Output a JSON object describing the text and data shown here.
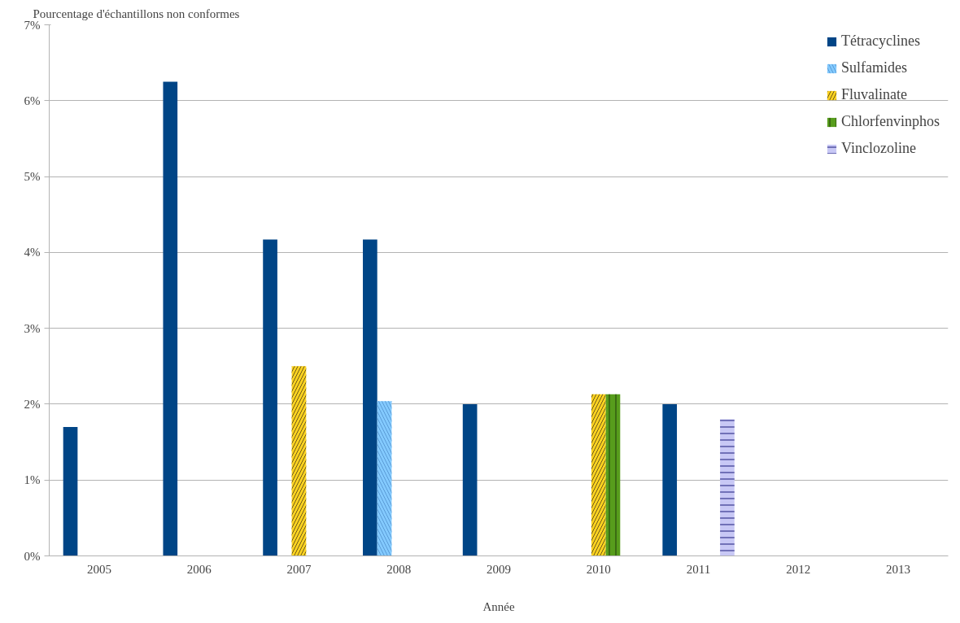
{
  "chart_data": {
    "type": "bar",
    "ylabel": "Pourcentage d'échantillons non conformes",
    "xlabel": "Année",
    "categories": [
      "2005",
      "2006",
      "2007",
      "2008",
      "2009",
      "2010",
      "2011",
      "2012",
      "2013"
    ],
    "series": [
      {
        "name": "Tétracyclines",
        "color": "#004586",
        "values": [
          1.7,
          6.25,
          4.17,
          4.17,
          2.0,
          0,
          2.0,
          0,
          0
        ]
      },
      {
        "name": "Sulfamides",
        "color": "#83caff",
        "values": [
          0,
          0,
          0,
          2.04,
          0,
          0,
          0,
          0,
          0
        ]
      },
      {
        "name": "Fluvalinate",
        "color": "#ffd320",
        "values": [
          0,
          0,
          2.5,
          0,
          0,
          2.13,
          0,
          0,
          0
        ]
      },
      {
        "name": "Chlorfenvinphos",
        "color": "#579d1c",
        "values": [
          0,
          0,
          0,
          0,
          0,
          2.13,
          0,
          0,
          0
        ]
      },
      {
        "name": "Vinclozoline",
        "color": "#c8c8f5",
        "values": [
          0,
          0,
          0,
          0,
          0,
          0,
          1.8,
          0,
          0
        ]
      }
    ],
    "ylim": [
      0,
      7
    ],
    "yticks": [
      {
        "value": 0,
        "label": "0%"
      },
      {
        "value": 1,
        "label": "1%"
      },
      {
        "value": 2,
        "label": "2%"
      },
      {
        "value": 3,
        "label": "3%"
      },
      {
        "value": 4,
        "label": "4%"
      },
      {
        "value": 5,
        "label": "5%"
      },
      {
        "value": 6,
        "label": "6%"
      },
      {
        "value": 7,
        "label": "7%"
      }
    ],
    "grid": "y",
    "legend": "top right"
  }
}
